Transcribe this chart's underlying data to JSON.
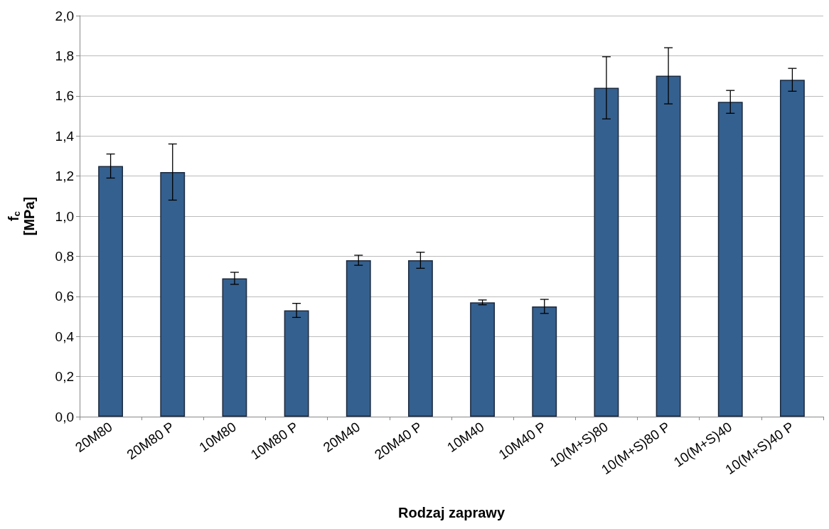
{
  "chart_data": {
    "type": "bar",
    "xlabel": "Rodzaj zaprawy",
    "ylabel": "f$_{c}$\n[MPa]",
    "categories": [
      "20M80",
      "20M80 P",
      "10M80",
      "10M80 P",
      "20M40",
      "20M40 P",
      "10M40",
      "10M40 P",
      "10(M+S)80",
      "10(M+S)80 P",
      "10(M+S)40",
      "10(M+S)40 P"
    ],
    "values": [
      1.25,
      1.22,
      0.69,
      0.53,
      0.78,
      0.78,
      0.57,
      0.55,
      1.64,
      1.7,
      1.57,
      1.68
    ],
    "errors": [
      0.06,
      0.14,
      0.03,
      0.035,
      0.025,
      0.04,
      0.012,
      0.035,
      0.155,
      0.14,
      0.057,
      0.057
    ],
    "color": "#34608f",
    "ylim": [
      0,
      2
    ],
    "yticks": [
      {
        "value": 0,
        "label": "0,0"
      },
      {
        "value": 0.2,
        "label": "0,2"
      },
      {
        "value": 0.4,
        "label": "0,4"
      },
      {
        "value": 0.6,
        "label": "0,6"
      },
      {
        "value": 0.8,
        "label": "0,8"
      },
      {
        "value": 1.0,
        "label": "1,0"
      },
      {
        "value": 1.2,
        "label": "1,2"
      },
      {
        "value": 1.4,
        "label": "1,4"
      },
      {
        "value": 1.6,
        "label": "1,6"
      },
      {
        "value": 1.8,
        "label": "1,8"
      },
      {
        "value": 2.0,
        "label": "2,0"
      }
    ],
    "grid": "y"
  }
}
